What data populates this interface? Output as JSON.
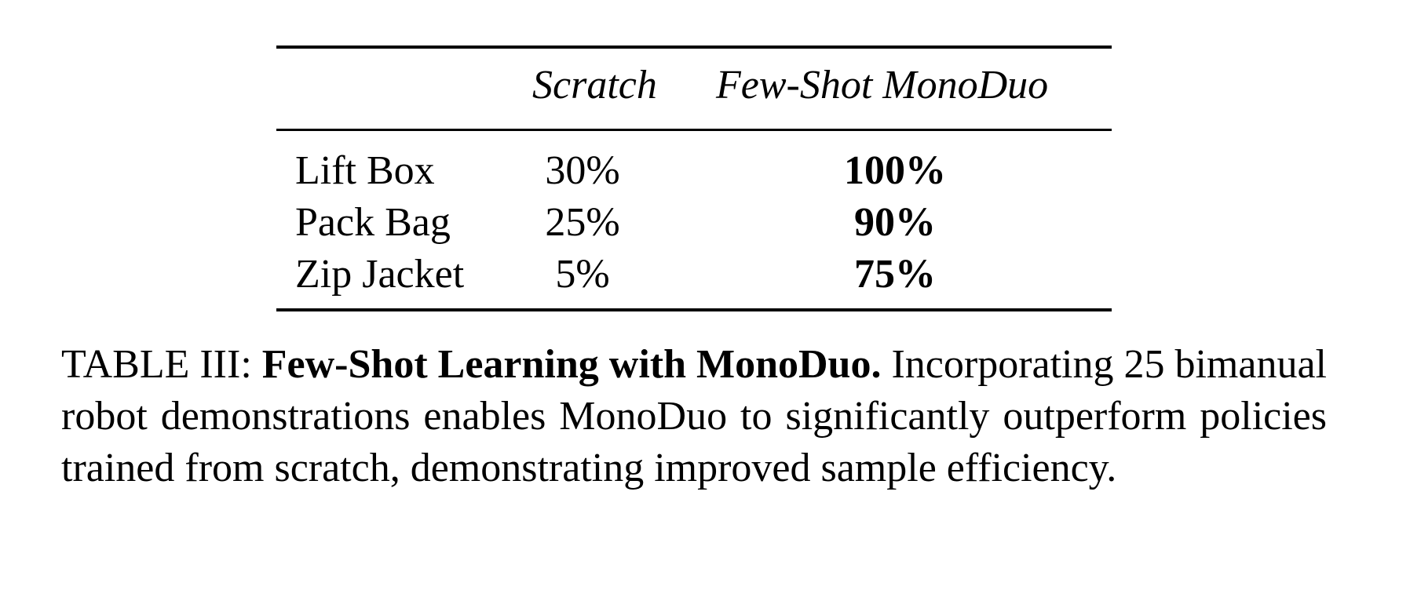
{
  "table": {
    "headers": [
      "",
      "Scratch",
      "Few-Shot MonoDuo"
    ],
    "rows": [
      {
        "task": "Lift Box",
        "scratch": "30%",
        "few_shot": "100%"
      },
      {
        "task": "Pack Bag",
        "scratch": "25%",
        "few_shot": "90%"
      },
      {
        "task": "Zip Jacket",
        "scratch": "5%",
        "few_shot": "75%"
      }
    ]
  },
  "caption": {
    "label": "TABLE III:",
    "title": "Few-Shot Learning with MonoDuo.",
    "text": "Incorporating 25 bimanual robot demonstrations enables MonoDuo to significantly outperform policies trained from scratch, demonstrating improved sample efficiency."
  }
}
